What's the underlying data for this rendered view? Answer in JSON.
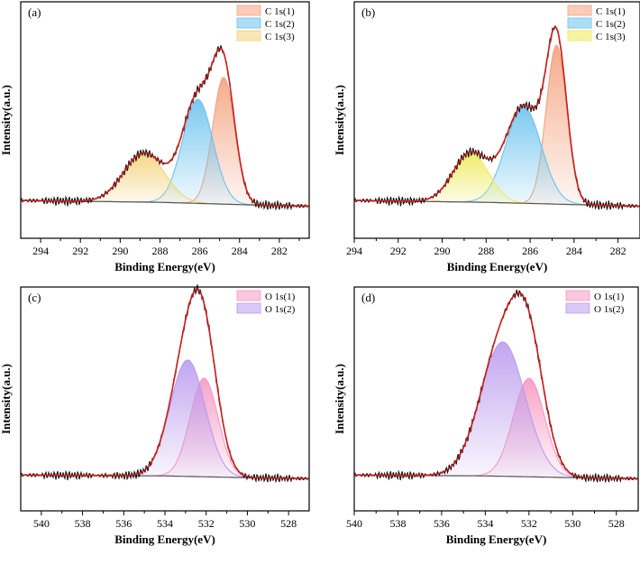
{
  "chart_data": [
    {
      "type": "area",
      "panel_label": "(a)",
      "xlabel": "Binding Energy(eV)",
      "ylabel": "Intensity(a.u.)",
      "xlim": [
        295,
        280.5
      ],
      "x_ticks": [
        294,
        292,
        290,
        288,
        286,
        284,
        282
      ],
      "legend_position": "top-right",
      "background": [
        [
          295,
          0.0
        ],
        [
          288,
          -0.01
        ],
        [
          283,
          -0.025
        ],
        [
          280.5,
          -0.03
        ]
      ],
      "series": [
        {
          "name": "C 1s(1)",
          "kind": "peak",
          "center": 284.8,
          "height": 0.67,
          "fwhm": 1.3,
          "color": "#f4a27e"
        },
        {
          "name": "C 1s(2)",
          "kind": "peak",
          "center": 286.1,
          "height": 0.55,
          "fwhm": 1.8,
          "color": "#6cc3ee"
        },
        {
          "name": "C 1s(3)",
          "kind": "peak",
          "center": 288.8,
          "height": 0.26,
          "fwhm": 2.4,
          "color": "#f4d27a"
        }
      ]
    },
    {
      "type": "area",
      "panel_label": "(b)",
      "xlabel": "Binding Energy(eV)",
      "ylabel": "Intensity(a.u.)",
      "xlim": [
        294,
        281
      ],
      "x_ticks": [
        294,
        292,
        290,
        288,
        286,
        284,
        282
      ],
      "legend_position": "top-right",
      "background": [
        [
          294,
          0.0
        ],
        [
          288,
          -0.01
        ],
        [
          283,
          -0.025
        ],
        [
          281,
          -0.03
        ]
      ],
      "series": [
        {
          "name": "C 1s(1)",
          "kind": "peak",
          "center": 284.8,
          "height": 0.84,
          "fwhm": 1.1,
          "color": "#f4a27e"
        },
        {
          "name": "C 1s(2)",
          "kind": "peak",
          "center": 286.3,
          "height": 0.51,
          "fwhm": 1.9,
          "color": "#6cc3ee"
        },
        {
          "name": "C 1s(3)",
          "kind": "peak",
          "center": 288.7,
          "height": 0.26,
          "fwhm": 1.9,
          "color": "#f0ea5a"
        }
      ]
    },
    {
      "type": "area",
      "panel_label": "(c)",
      "xlabel": "Binding Energy(eV)",
      "ylabel": "Intensity(a.u.)",
      "xlim": [
        541,
        527
      ],
      "x_ticks": [
        540,
        538,
        536,
        534,
        532,
        530,
        528
      ],
      "legend_position": "top-right",
      "background": [
        [
          541,
          0.0
        ],
        [
          534,
          -0.005
        ],
        [
          530,
          -0.015
        ],
        [
          527,
          -0.02
        ]
      ],
      "series": [
        {
          "name": "O 1s(1)",
          "kind": "peak",
          "center": 532.1,
          "height": 0.55,
          "fwhm": 1.6,
          "color": "#f59ac3"
        },
        {
          "name": "O 1s(2)",
          "kind": "peak",
          "center": 532.9,
          "height": 0.65,
          "fwhm": 2.0,
          "color": "#bb9cee"
        }
      ]
    },
    {
      "type": "area",
      "panel_label": "(d)",
      "xlabel": "Binding Energy(eV)",
      "ylabel": "Intensity(a.u.)",
      "xlim": [
        540,
        527
      ],
      "x_ticks": [
        540,
        538,
        536,
        534,
        532,
        530,
        528
      ],
      "legend_position": "top-right",
      "background": [
        [
          540,
          0.0
        ],
        [
          534,
          -0.005
        ],
        [
          530,
          -0.015
        ],
        [
          527,
          -0.02
        ]
      ],
      "series": [
        {
          "name": "O 1s(1)",
          "kind": "peak",
          "center": 532.0,
          "height": 0.55,
          "fwhm": 1.7,
          "color": "#f59ac3"
        },
        {
          "name": "O 1s(2)",
          "kind": "peak",
          "center": 533.2,
          "height": 0.75,
          "fwhm": 2.4,
          "color": "#bb9cee"
        }
      ]
    }
  ],
  "colors": {
    "envelope": "#cc1e1e",
    "raw": "#111111",
    "background_line": "#555555"
  }
}
